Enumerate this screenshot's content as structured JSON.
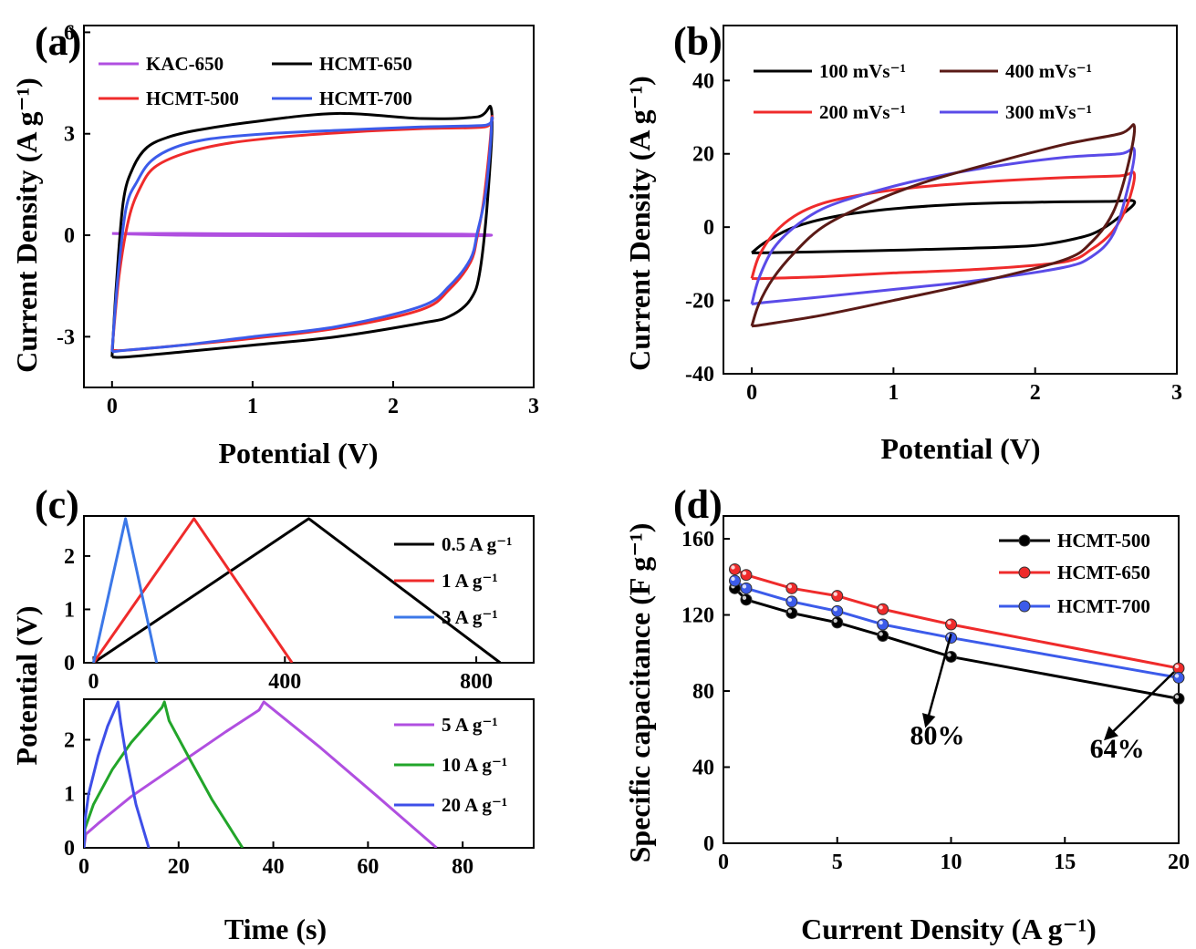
{
  "figure": {
    "panels": [
      "(a)",
      "(b)",
      "(c)",
      "(d)"
    ]
  },
  "chart_data": [
    {
      "id": "a",
      "type": "line",
      "panel_label": "(a)",
      "xlabel": "Potential (V)",
      "ylabel": "Current Density (A g⁻¹)",
      "xlim": [
        -0.2,
        3
      ],
      "ylim": [
        -4.5,
        6.2
      ],
      "xticks": [
        0,
        1,
        2,
        3
      ],
      "yticks": [
        -3,
        0,
        3,
        6
      ],
      "legend_position": "top-left",
      "series": [
        {
          "name": "KAC-650",
          "color": "#b04fe0",
          "x": [
            0,
            0.5,
            1,
            1.5,
            2,
            2.5,
            2.7,
            2.5,
            2,
            1.5,
            1,
            0.5,
            0
          ],
          "y": [
            0.05,
            0.05,
            0.04,
            0.04,
            0.04,
            0.03,
            0,
            -0.02,
            -0.02,
            -0.02,
            -0.01,
            0,
            0.05
          ]
        },
        {
          "name": "HCMT-650",
          "color": "#000000",
          "x": [
            0,
            0.03,
            0.08,
            0.15,
            0.25,
            0.4,
            0.6,
            1,
            1.6,
            2.2,
            2.6,
            2.7,
            2.68,
            2.62,
            2.55,
            2.4,
            2.2,
            1.6,
            1,
            0.5,
            0.1,
            0
          ],
          "y": [
            -3.6,
            -1.5,
            1.0,
            2.0,
            2.6,
            2.9,
            3.1,
            3.35,
            3.6,
            3.45,
            3.5,
            3.7,
            1.5,
            -1.0,
            -1.9,
            -2.4,
            -2.6,
            -3.0,
            -3.25,
            -3.45,
            -3.6,
            -3.6
          ]
        },
        {
          "name": "HCMT-500",
          "color": "#ef2b2b",
          "x": [
            0,
            0.05,
            0.12,
            0.2,
            0.3,
            0.5,
            0.8,
            1.2,
            1.7,
            2.2,
            2.65,
            2.7,
            2.65,
            2.6,
            2.55,
            2.4,
            2.2,
            1.6,
            1,
            0.5,
            0.1,
            0
          ],
          "y": [
            -3.4,
            -1.2,
            0.5,
            1.4,
            2.0,
            2.4,
            2.7,
            2.9,
            3.05,
            3.15,
            3.2,
            3.4,
            1.2,
            0.0,
            -0.8,
            -1.6,
            -2.2,
            -2.75,
            -3.05,
            -3.25,
            -3.4,
            -3.4
          ]
        },
        {
          "name": "HCMT-700",
          "color": "#3c5bea",
          "x": [
            0,
            0.04,
            0.1,
            0.18,
            0.28,
            0.45,
            0.7,
            1.1,
            1.6,
            2.2,
            2.65,
            2.7,
            2.66,
            2.6,
            2.55,
            2.4,
            2.2,
            1.6,
            1,
            0.5,
            0.1,
            0
          ],
          "y": [
            -3.45,
            -1.3,
            0.8,
            1.6,
            2.2,
            2.6,
            2.85,
            3.0,
            3.1,
            3.2,
            3.25,
            3.35,
            1.3,
            0.1,
            -0.7,
            -1.5,
            -2.1,
            -2.7,
            -3.0,
            -3.25,
            -3.4,
            -3.45
          ]
        }
      ]
    },
    {
      "id": "b",
      "type": "line",
      "panel_label": "(b)",
      "xlabel": "Potential (V)",
      "ylabel": "Current Density (A g⁻¹)",
      "xlim": [
        -0.2,
        3
      ],
      "ylim": [
        -40,
        55
      ],
      "xticks": [
        0,
        1,
        2,
        3
      ],
      "yticks": [
        -40,
        -20,
        0,
        20,
        40
      ],
      "legend_position": "top",
      "series": [
        {
          "name": "100 mVs⁻¹",
          "color": "#000000",
          "x": [
            0,
            0.1,
            0.3,
            0.6,
            1,
            1.5,
            2,
            2.5,
            2.7,
            2.6,
            2.45,
            2.3,
            2,
            1.5,
            1,
            0.5,
            0.1,
            0
          ],
          "y": [
            -7,
            -4,
            0,
            3,
            5,
            6.3,
            6.8,
            7,
            7,
            3,
            -1,
            -3,
            -5,
            -5.8,
            -6.3,
            -6.7,
            -7,
            -7
          ]
        },
        {
          "name": "200 mVs⁻¹",
          "color": "#ef2b2b",
          "x": [
            0,
            0.05,
            0.15,
            0.3,
            0.5,
            0.8,
            1.2,
            1.7,
            2.2,
            2.6,
            2.7,
            2.65,
            2.55,
            2.4,
            2.2,
            1.6,
            1,
            0.5,
            0.1,
            0
          ],
          "y": [
            -14,
            -8,
            -2,
            3,
            6.5,
            9,
            11,
            12.5,
            13.5,
            14,
            14.5,
            6,
            -1,
            -6,
            -9.5,
            -11.5,
            -12.5,
            -13.5,
            -14,
            -14
          ]
        },
        {
          "name": "300 mVs⁻¹",
          "color": "#5a4be8",
          "x": [
            0,
            0.05,
            0.15,
            0.3,
            0.5,
            0.8,
            1.2,
            1.7,
            2.2,
            2.6,
            2.7,
            2.65,
            2.55,
            2.4,
            2.2,
            1.6,
            1,
            0.5,
            0.1,
            0
          ],
          "y": [
            -21,
            -14,
            -6,
            0,
            5,
            9,
            13,
            16.5,
            19,
            20,
            21,
            10,
            -2,
            -8,
            -11,
            -14.5,
            -17,
            -19,
            -20.5,
            -21
          ]
        },
        {
          "name": "400 mVs⁻¹",
          "color": "#5a1a16",
          "x": [
            0,
            0.05,
            0.15,
            0.3,
            0.5,
            0.8,
            1.2,
            1.7,
            2.2,
            2.6,
            2.7,
            2.65,
            2.55,
            2.4,
            2.2,
            1.6,
            1,
            0.5,
            0.1,
            0
          ],
          "y": [
            -27,
            -21,
            -14,
            -7,
            0,
            6,
            12,
            17.5,
            22.5,
            25.5,
            27.5,
            16,
            4,
            -4,
            -9,
            -15,
            -20,
            -24,
            -26.5,
            -27
          ]
        }
      ]
    },
    {
      "id": "c-top",
      "type": "line",
      "panel_label": "(c)",
      "ylabel": "Potential (V)",
      "xlim": [
        -20,
        920
      ],
      "ylim": [
        0,
        2.75
      ],
      "xticks": [
        0,
        400,
        800
      ],
      "yticks": [
        0,
        1,
        2
      ],
      "legend_position": "right",
      "series": [
        {
          "name": "0.5 A g⁻¹",
          "color": "#000000",
          "x": [
            0,
            450,
            850
          ],
          "y": [
            0,
            2.7,
            0
          ]
        },
        {
          "name": "1 A g⁻¹",
          "color": "#ef2b2b",
          "x": [
            0,
            210,
            415
          ],
          "y": [
            0,
            2.7,
            0
          ]
        },
        {
          "name": "3 A g⁻¹",
          "color": "#3c78e8",
          "x": [
            0,
            67,
            132
          ],
          "y": [
            0,
            2.7,
            0
          ]
        }
      ]
    },
    {
      "id": "c-bottom",
      "type": "line",
      "xlabel": "Time (s)",
      "ylabel": "Potential (V)",
      "xlim": [
        0,
        95
      ],
      "ylim": [
        0,
        2.75
      ],
      "xticks": [
        0,
        20,
        40,
        60,
        80
      ],
      "yticks": [
        0,
        1,
        2
      ],
      "legend_position": "right",
      "series": [
        {
          "name": "5 A g⁻¹",
          "color": "#b04fe0",
          "x": [
            0,
            0.4,
            3,
            10,
            20,
            30,
            37,
            38,
            50,
            62,
            74.5
          ],
          "y": [
            0,
            0.25,
            0.45,
            0.95,
            1.55,
            2.15,
            2.55,
            2.7,
            1.85,
            0.95,
            0
          ]
        },
        {
          "name": "10 A g⁻¹",
          "color": "#22a52a",
          "x": [
            0,
            0.2,
            2,
            6,
            10,
            14,
            16.5,
            17,
            18,
            22,
            27,
            33.5
          ],
          "y": [
            0,
            0.35,
            0.8,
            1.45,
            1.95,
            2.35,
            2.6,
            2.7,
            2.35,
            1.7,
            0.9,
            0
          ]
        },
        {
          "name": "20 A g⁻¹",
          "color": "#3e4fe8",
          "x": [
            0,
            0.2,
            1,
            3,
            5,
            7.2,
            7.8,
            9,
            11,
            13.7
          ],
          "y": [
            0,
            0.5,
            1.0,
            1.7,
            2.25,
            2.7,
            2.3,
            1.65,
            0.8,
            0
          ]
        }
      ]
    },
    {
      "id": "d",
      "type": "line",
      "panel_label": "(d)",
      "xlabel": "Current Density (A g⁻¹)",
      "ylabel": "Specific capacitance (F g⁻¹)",
      "xlim": [
        0,
        20
      ],
      "ylim": [
        0,
        172
      ],
      "xticks": [
        0,
        5,
        10,
        15,
        20
      ],
      "yticks": [
        0,
        40,
        80,
        120,
        160
      ],
      "legend_position": "top-right",
      "series": [
        {
          "name": "HCMT-500",
          "color": "#000000",
          "x": [
            0.5,
            1,
            3,
            5,
            7,
            10,
            20
          ],
          "y": [
            134,
            128,
            121,
            116,
            109,
            98,
            76
          ]
        },
        {
          "name": "HCMT-650",
          "color": "#ef2b2b",
          "x": [
            0.5,
            1,
            3,
            5,
            7,
            10,
            20
          ],
          "y": [
            144,
            141,
            134,
            130,
            123,
            115,
            92
          ]
        },
        {
          "name": "HCMT-700",
          "color": "#3c5bea",
          "x": [
            0.5,
            1,
            3,
            5,
            7,
            10,
            20
          ],
          "y": [
            138,
            134,
            127,
            122,
            115,
            108,
            87
          ]
        }
      ],
      "annotations": [
        {
          "text": "80%",
          "from": [
            10,
            110
          ],
          "to": [
            8.9,
            62
          ],
          "label_at": [
            9.4,
            52
          ]
        },
        {
          "text": "64%",
          "from": [
            19.8,
            90
          ],
          "to": [
            16.8,
            55
          ],
          "label_at": [
            17.3,
            45
          ]
        }
      ]
    }
  ]
}
